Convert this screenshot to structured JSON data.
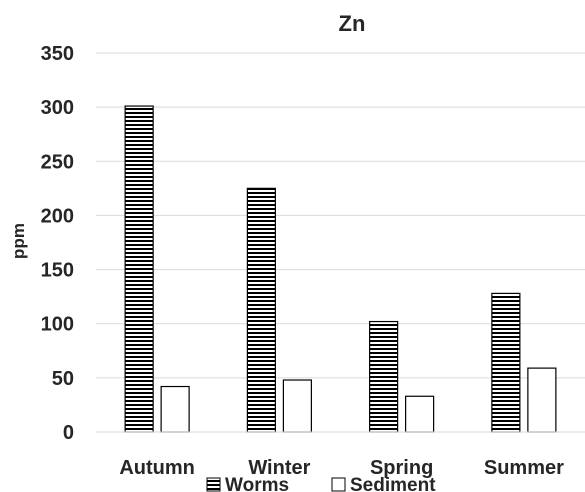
{
  "chart_data": {
    "type": "bar",
    "title": "Zn",
    "xlabel": "",
    "ylabel": "ppm",
    "ylim": [
      0,
      350
    ],
    "yticks": [
      0,
      50,
      100,
      150,
      200,
      250,
      300,
      350
    ],
    "grid": true,
    "legend_position": "bottom",
    "categories": [
      "Autumn",
      "Winter",
      "Spring",
      "Summer"
    ],
    "series": [
      {
        "name": "Worms",
        "values": [
          301,
          225,
          102,
          128
        ],
        "fill": "horizontal-stripes",
        "color": "#000000"
      },
      {
        "name": "Sediment",
        "values": [
          42,
          48,
          33,
          59
        ],
        "fill": "white",
        "color": "#000000"
      }
    ]
  }
}
